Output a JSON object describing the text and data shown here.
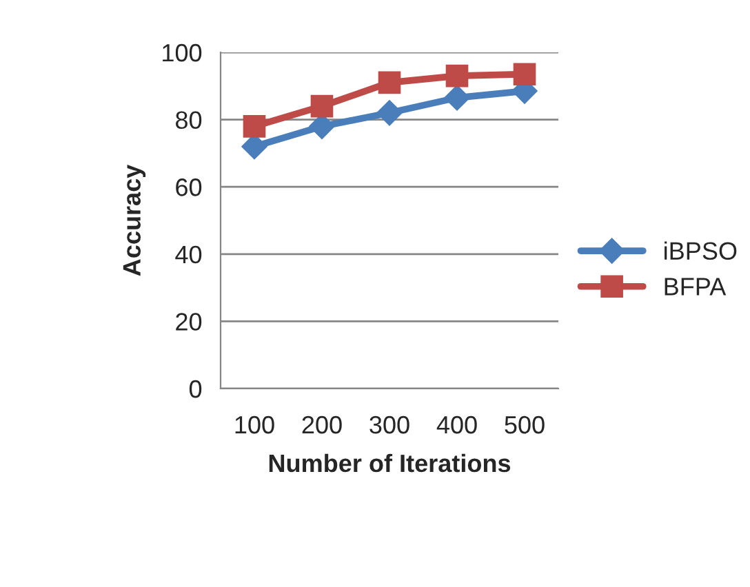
{
  "chart_data": {
    "type": "line",
    "xlabel": "Number of Iterations",
    "ylabel": "Accuracy",
    "categories": [
      "100",
      "200",
      "300",
      "400",
      "500"
    ],
    "series": [
      {
        "name": "iBPSO",
        "color": "#4a7ebb",
        "marker": "diamond",
        "values": [
          72,
          78,
          82,
          86.5,
          88.5
        ]
      },
      {
        "name": "BFPA",
        "color": "#be4b48",
        "marker": "square",
        "values": [
          78,
          84,
          91,
          93,
          93.5
        ]
      }
    ],
    "ylim": [
      0,
      100
    ],
    "yticks": [
      0,
      20,
      40,
      60,
      80,
      100
    ],
    "grid": "y",
    "legend": "right",
    "line_style": "solid"
  }
}
